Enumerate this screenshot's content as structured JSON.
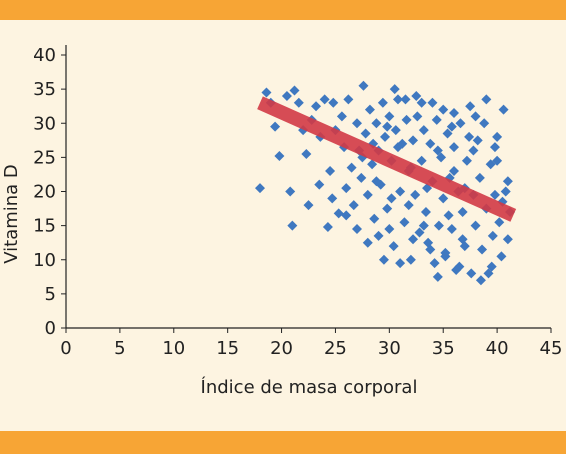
{
  "colors": {
    "band": "#f7a535",
    "background": "#fdf4e1",
    "points": "#3f78c0",
    "trend": "#d23a46",
    "axis": "#222222"
  },
  "chart_data": {
    "type": "scatter",
    "title": "",
    "xlabel": "Índice de masa corporal",
    "ylabel": "Vitamina D",
    "xlim": [
      0,
      45
    ],
    "ylim": [
      0,
      40
    ],
    "xticks": [
      "0",
      "5",
      "10",
      "15",
      "20",
      "25",
      "30",
      "35",
      "40",
      "45"
    ],
    "yticks": [
      "0",
      "5",
      "10",
      "15",
      "20",
      "25",
      "30",
      "35",
      "40"
    ],
    "grid": false,
    "legend": "none",
    "trend_line": {
      "x": [
        18,
        41.5
      ],
      "y": [
        33,
        16.5
      ]
    },
    "points": [
      [
        18.0,
        20.5
      ],
      [
        18.6,
        34.5
      ],
      [
        19.0,
        33.0
      ],
      [
        19.4,
        29.5
      ],
      [
        19.8,
        25.2
      ],
      [
        20.5,
        34.0
      ],
      [
        20.8,
        20.0
      ],
      [
        21.0,
        15.0
      ],
      [
        21.2,
        34.8
      ],
      [
        21.6,
        33.0
      ],
      [
        22.0,
        29.0
      ],
      [
        22.3,
        25.5
      ],
      [
        22.5,
        18.0
      ],
      [
        22.8,
        30.5
      ],
      [
        23.2,
        32.5
      ],
      [
        23.6,
        28.0
      ],
      [
        24.0,
        33.5
      ],
      [
        24.3,
        14.8
      ],
      [
        24.5,
        23.0
      ],
      [
        24.7,
        19.0
      ],
      [
        25.0,
        29.0
      ],
      [
        25.3,
        16.8
      ],
      [
        25.6,
        31.0
      ],
      [
        25.8,
        26.5
      ],
      [
        26.0,
        20.5
      ],
      [
        26.2,
        33.5
      ],
      [
        26.5,
        23.5
      ],
      [
        26.7,
        18.0
      ],
      [
        27.0,
        30.0
      ],
      [
        27.2,
        26.0
      ],
      [
        27.4,
        22.0
      ],
      [
        27.6,
        35.5
      ],
      [
        27.8,
        28.5
      ],
      [
        28.0,
        19.5
      ],
      [
        28.2,
        32.0
      ],
      [
        28.4,
        24.0
      ],
      [
        28.6,
        16.0
      ],
      [
        28.8,
        30.0
      ],
      [
        29.0,
        26.0
      ],
      [
        29.2,
        21.0
      ],
      [
        29.4,
        33.0
      ],
      [
        29.6,
        28.0
      ],
      [
        29.8,
        17.5
      ],
      [
        30.0,
        31.0
      ],
      [
        30.2,
        24.5
      ],
      [
        30.4,
        12.0
      ],
      [
        30.6,
        29.0
      ],
      [
        30.8,
        33.5
      ],
      [
        31.0,
        20.0
      ],
      [
        31.2,
        27.0
      ],
      [
        31.4,
        15.5
      ],
      [
        31.6,
        30.5
      ],
      [
        31.8,
        23.0
      ],
      [
        32.0,
        10.0
      ],
      [
        32.2,
        27.5
      ],
      [
        32.4,
        19.5
      ],
      [
        32.6,
        31.0
      ],
      [
        32.8,
        14.0
      ],
      [
        33.0,
        24.5
      ],
      [
        33.2,
        29.0
      ],
      [
        33.4,
        17.0
      ],
      [
        33.6,
        12.5
      ],
      [
        33.8,
        27.0
      ],
      [
        34.0,
        21.5
      ],
      [
        34.2,
        9.5
      ],
      [
        34.4,
        30.5
      ],
      [
        34.6,
        15.0
      ],
      [
        34.8,
        25.0
      ],
      [
        35.0,
        19.0
      ],
      [
        35.2,
        11.0
      ],
      [
        35.4,
        28.5
      ],
      [
        35.6,
        22.0
      ],
      [
        35.8,
        14.5
      ],
      [
        36.0,
        26.5
      ],
      [
        36.2,
        8.5
      ],
      [
        36.4,
        20.0
      ],
      [
        36.6,
        30.0
      ],
      [
        36.8,
        17.0
      ],
      [
        37.0,
        12.0
      ],
      [
        37.2,
        24.5
      ],
      [
        37.4,
        28.0
      ],
      [
        37.6,
        8.0
      ],
      [
        37.8,
        19.5
      ],
      [
        38.0,
        15.0
      ],
      [
        38.2,
        27.5
      ],
      [
        38.4,
        22.0
      ],
      [
        38.6,
        11.5
      ],
      [
        38.8,
        30.0
      ],
      [
        39.0,
        17.5
      ],
      [
        39.2,
        8.0
      ],
      [
        39.4,
        24.0
      ],
      [
        39.6,
        13.5
      ],
      [
        39.8,
        19.5
      ],
      [
        40.0,
        28.0
      ],
      [
        40.2,
        15.5
      ],
      [
        40.4,
        10.5
      ],
      [
        40.6,
        32.0
      ],
      [
        40.8,
        20.0
      ],
      [
        41.0,
        13.0
      ],
      [
        41.2,
        17.0
      ],
      [
        33.0,
        33.0
      ],
      [
        35.0,
        32.0
      ],
      [
        36.0,
        31.5
      ],
      [
        37.5,
        32.5
      ],
      [
        31.0,
        9.5
      ],
      [
        30.0,
        14.5
      ],
      [
        29.5,
        10.0
      ],
      [
        34.5,
        7.5
      ],
      [
        36.5,
        9.0
      ],
      [
        38.5,
        7.0
      ],
      [
        39.5,
        9.0
      ],
      [
        32.5,
        34.0
      ],
      [
        30.5,
        35.0
      ],
      [
        29.0,
        13.5
      ],
      [
        28.0,
        12.5
      ],
      [
        27.0,
        14.5
      ],
      [
        26.0,
        16.5
      ],
      [
        31.5,
        33.5
      ],
      [
        34.0,
        33.0
      ],
      [
        38.0,
        31.0
      ],
      [
        40.0,
        24.5
      ],
      [
        41.0,
        21.5
      ],
      [
        39.0,
        33.5
      ],
      [
        24.8,
        33.0
      ],
      [
        23.5,
        21.0
      ],
      [
        35.5,
        16.5
      ],
      [
        33.5,
        20.5
      ],
      [
        32.0,
        23.5
      ],
      [
        30.8,
        26.5
      ],
      [
        29.8,
        29.5
      ],
      [
        28.5,
        27.0
      ],
      [
        27.5,
        25.0
      ],
      [
        37.0,
        20.5
      ],
      [
        36.0,
        23.0
      ],
      [
        34.5,
        26.0
      ],
      [
        35.8,
        29.5
      ],
      [
        31.8,
        18.0
      ],
      [
        33.2,
        15.0
      ],
      [
        30.2,
        19.0
      ],
      [
        28.8,
        21.5
      ],
      [
        37.8,
        26.0
      ],
      [
        39.8,
        26.5
      ],
      [
        40.5,
        18.5
      ],
      [
        36.8,
        13.0
      ],
      [
        35.2,
        10.5
      ],
      [
        33.8,
        11.5
      ],
      [
        32.2,
        13.0
      ]
    ]
  }
}
